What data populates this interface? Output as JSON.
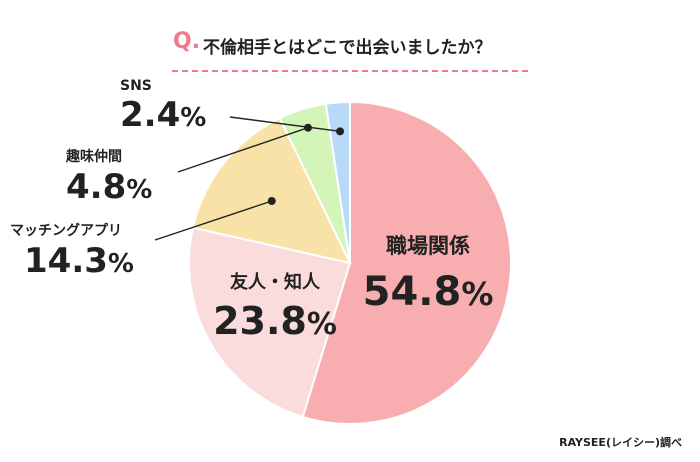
{
  "title": {
    "q_mark": "Q.",
    "question": "不倫相手とはどこで出会いましたか？"
  },
  "source": "RAYSEE(レイシー)調べ",
  "colors": {
    "accent": "#f07a85",
    "slice_work": "#f8aeb0",
    "slice_friends": "#fbdcdc",
    "slice_app": "#f8e2a8",
    "slice_hobby": "#d3f5b8",
    "slice_sns": "#b8daf8"
  },
  "chart_data": {
    "type": "pie",
    "start": "12 o'clock, clockwise",
    "slices": [
      {
        "name": "職場関係",
        "value": 54.8,
        "pct": "%"
      },
      {
        "name": "友人・知人",
        "value": 23.8,
        "pct": "%"
      },
      {
        "name": "マッチングアプリ",
        "value": 14.3,
        "pct": "%"
      },
      {
        "name": "趣味仲間",
        "value": 4.8,
        "pct": "%"
      },
      {
        "name": "SNS",
        "value": 2.4,
        "pct": "%"
      }
    ]
  }
}
